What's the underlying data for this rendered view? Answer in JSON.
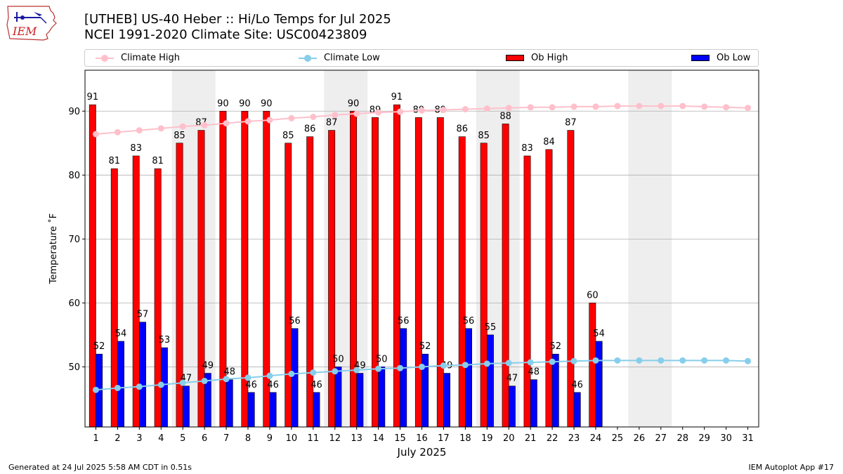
{
  "page": {
    "title_line1": "[UTHEB] US-40 Heber  :: Hi/Lo Temps for Jul 2025",
    "title_line2": "NCEI 1991-2020 Climate Site: USC00423809",
    "logo_text": "IEM",
    "footer_left": "Generated at 24 Jul 2025 5:58 AM CDT in 0.51s",
    "footer_right": "IEM Autoplot App #17"
  },
  "legend": {
    "climate_high": "Climate High",
    "climate_low": "Climate Low",
    "ob_high": "Ob High",
    "ob_low": "Ob Low"
  },
  "colors": {
    "climate_high": "#ffc0cb",
    "climate_low": "#87ceeb",
    "ob_high": "#ff0000",
    "ob_low": "#0000ff",
    "weekend_shade": "#eeeeee",
    "grid": "#b0b0b0"
  },
  "chart_data": {
    "type": "bar",
    "xlabel": "July 2025",
    "ylabel": "Temperature ˚F",
    "xlim": [
      0.5,
      31.5
    ],
    "ylim": [
      40.6,
      96.4
    ],
    "yticks": [
      50,
      60,
      70,
      80,
      90
    ],
    "grid": "horizontal",
    "legend_position": "top",
    "days": [
      1,
      2,
      3,
      4,
      5,
      6,
      7,
      8,
      9,
      10,
      11,
      12,
      13,
      14,
      15,
      16,
      17,
      18,
      19,
      20,
      21,
      22,
      23,
      24,
      25,
      26,
      27,
      28,
      29,
      30,
      31
    ],
    "weekend_shaded_days": [
      [
        5,
        6
      ],
      [
        12,
        13
      ],
      [
        19,
        20
      ],
      [
        26,
        27
      ]
    ],
    "series": [
      {
        "name": "Ob High",
        "kind": "bar",
        "values": [
          91,
          81,
          83,
          81,
          85,
          87,
          90,
          90,
          90,
          85,
          86,
          87,
          90,
          89,
          91,
          89,
          89,
          86,
          85,
          88,
          83,
          84,
          87,
          60
        ]
      },
      {
        "name": "Ob Low",
        "kind": "bar",
        "values": [
          52,
          54,
          57,
          53,
          47,
          49,
          48,
          46,
          46,
          56,
          46,
          50,
          49,
          50,
          56,
          52,
          49,
          56,
          55,
          47,
          48,
          52,
          46,
          54
        ]
      },
      {
        "name": "Climate High",
        "kind": "line",
        "values": [
          86.4,
          86.7,
          87.0,
          87.3,
          87.6,
          87.8,
          88.1,
          88.4,
          88.6,
          88.9,
          89.1,
          89.4,
          89.6,
          89.8,
          89.9,
          90.1,
          90.2,
          90.3,
          90.4,
          90.5,
          90.6,
          90.6,
          90.7,
          90.7,
          90.8,
          90.8,
          90.8,
          90.8,
          90.7,
          90.6,
          90.5
        ]
      },
      {
        "name": "Climate Low",
        "kind": "line",
        "values": [
          46.4,
          46.7,
          46.9,
          47.2,
          47.5,
          47.8,
          48.1,
          48.3,
          48.6,
          48.9,
          49.1,
          49.3,
          49.5,
          49.7,
          49.8,
          50.0,
          50.2,
          50.3,
          50.5,
          50.6,
          50.7,
          50.8,
          50.9,
          51.0,
          51.0,
          51.0,
          51.0,
          51.0,
          51.0,
          51.0,
          50.9
        ]
      }
    ]
  }
}
